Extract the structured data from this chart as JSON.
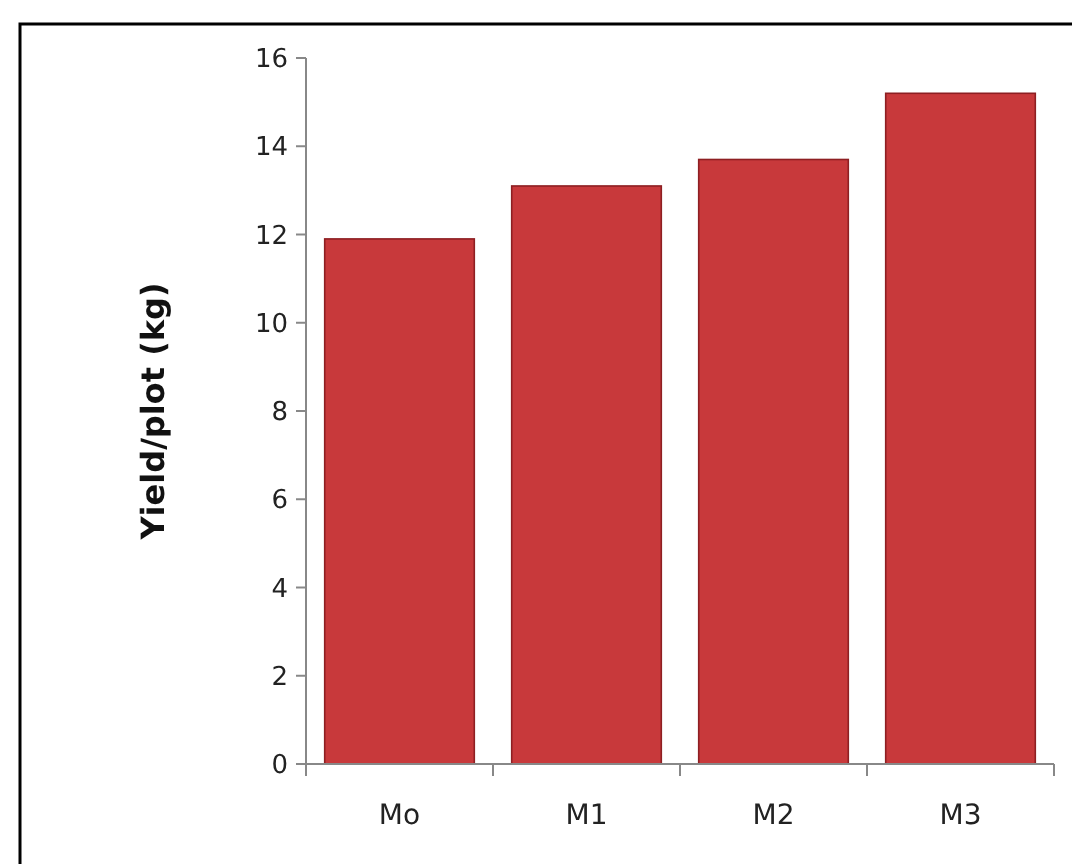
{
  "chart_data": {
    "type": "bar",
    "ylabel": "Yield/plot (kg)",
    "categories": [
      "Mo",
      "M1",
      "M2",
      "M3"
    ],
    "values": [
      11.9,
      13.1,
      13.7,
      15.2
    ],
    "color": "#c8393b",
    "ylim": [
      0,
      16
    ],
    "yticks": [
      0,
      2,
      4,
      6,
      8,
      10,
      12,
      14,
      16
    ],
    "grid": false
  }
}
